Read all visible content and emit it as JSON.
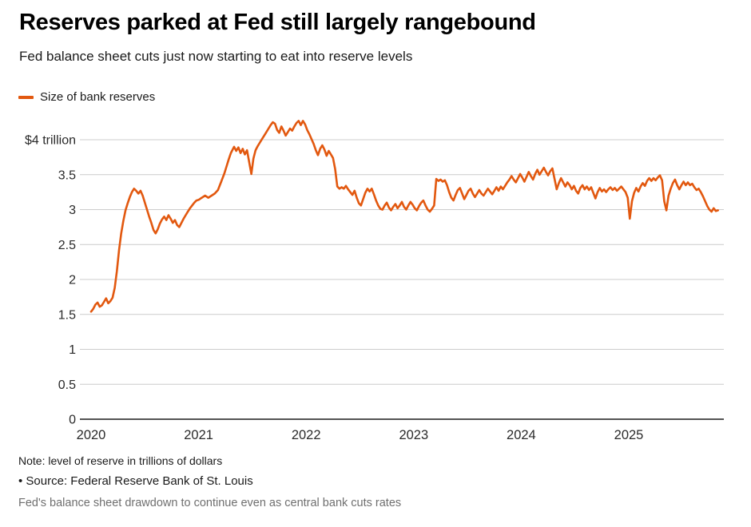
{
  "header": {
    "title": "Reserves parked at Fed still largely rangebound",
    "subtitle": "Fed balance sheet cuts just now starting to eat into reserve levels"
  },
  "legend": {
    "series_label": "Size of bank reserves"
  },
  "footer": {
    "note": "Note: level of reserve in trillions of dollars",
    "source": "• Source: Federal Reserve Bank of St. Louis",
    "caption": "Fed's balance sheet drawdown to continue even as central bank cuts rates"
  },
  "colors": {
    "line": "#E2580F",
    "grid": "#cccccc",
    "axis": "#1a1a1a",
    "tick_text": "#2a2a2a"
  },
  "chart_data": {
    "type": "line",
    "title": "Reserves parked at Fed still largely rangebound",
    "subtitle": "Fed balance sheet cuts just now starting to eat into reserve levels",
    "unit": "trillions of dollars",
    "grid": "horizontal",
    "legend_position": "top-left",
    "xlim": [
      2020,
      2025.9
    ],
    "ylim": [
      0,
      4.4
    ],
    "x_ticks": [
      2020,
      2021,
      2022,
      2023,
      2024,
      2025
    ],
    "y_ticks": [
      {
        "value": 4,
        "label": "$4 trillion"
      },
      {
        "value": 3.5,
        "label": "3.5"
      },
      {
        "value": 3,
        "label": "3"
      },
      {
        "value": 2.5,
        "label": "2.5"
      },
      {
        "value": 2,
        "label": "2"
      },
      {
        "value": 1.5,
        "label": "1.5"
      },
      {
        "value": 1,
        "label": "1"
      },
      {
        "value": 0.5,
        "label": "0.5"
      },
      {
        "value": 0,
        "label": "0"
      }
    ],
    "series": [
      {
        "name": "Size of bank reserves",
        "points": [
          [
            2020.0,
            1.54
          ],
          [
            2020.02,
            1.58
          ],
          [
            2020.04,
            1.64
          ],
          [
            2020.06,
            1.67
          ],
          [
            2020.08,
            1.61
          ],
          [
            2020.1,
            1.63
          ],
          [
            2020.12,
            1.68
          ],
          [
            2020.14,
            1.73
          ],
          [
            2020.16,
            1.66
          ],
          [
            2020.18,
            1.69
          ],
          [
            2020.2,
            1.74
          ],
          [
            2020.22,
            1.88
          ],
          [
            2020.24,
            2.12
          ],
          [
            2020.26,
            2.42
          ],
          [
            2020.28,
            2.66
          ],
          [
            2020.3,
            2.84
          ],
          [
            2020.32,
            2.99
          ],
          [
            2020.34,
            3.09
          ],
          [
            2020.36,
            3.18
          ],
          [
            2020.38,
            3.25
          ],
          [
            2020.4,
            3.3
          ],
          [
            2020.42,
            3.27
          ],
          [
            2020.44,
            3.23
          ],
          [
            2020.46,
            3.27
          ],
          [
            2020.48,
            3.2
          ],
          [
            2020.5,
            3.1
          ],
          [
            2020.52,
            3.0
          ],
          [
            2020.54,
            2.9
          ],
          [
            2020.56,
            2.81
          ],
          [
            2020.58,
            2.71
          ],
          [
            2020.6,
            2.66
          ],
          [
            2020.62,
            2.72
          ],
          [
            2020.64,
            2.8
          ],
          [
            2020.66,
            2.86
          ],
          [
            2020.68,
            2.9
          ],
          [
            2020.7,
            2.85
          ],
          [
            2020.72,
            2.92
          ],
          [
            2020.74,
            2.87
          ],
          [
            2020.76,
            2.81
          ],
          [
            2020.78,
            2.85
          ],
          [
            2020.8,
            2.78
          ],
          [
            2020.82,
            2.75
          ],
          [
            2020.84,
            2.81
          ],
          [
            2020.86,
            2.87
          ],
          [
            2020.88,
            2.92
          ],
          [
            2020.9,
            2.97
          ],
          [
            2020.92,
            3.02
          ],
          [
            2020.94,
            3.06
          ],
          [
            2020.96,
            3.1
          ],
          [
            2020.98,
            3.13
          ],
          [
            2021.0,
            3.14
          ],
          [
            2021.03,
            3.17
          ],
          [
            2021.06,
            3.2
          ],
          [
            2021.09,
            3.17
          ],
          [
            2021.12,
            3.2
          ],
          [
            2021.15,
            3.23
          ],
          [
            2021.18,
            3.28
          ],
          [
            2021.21,
            3.4
          ],
          [
            2021.24,
            3.52
          ],
          [
            2021.26,
            3.62
          ],
          [
            2021.28,
            3.72
          ],
          [
            2021.3,
            3.81
          ],
          [
            2021.33,
            3.9
          ],
          [
            2021.35,
            3.84
          ],
          [
            2021.37,
            3.89
          ],
          [
            2021.39,
            3.81
          ],
          [
            2021.41,
            3.87
          ],
          [
            2021.43,
            3.79
          ],
          [
            2021.45,
            3.85
          ],
          [
            2021.47,
            3.68
          ],
          [
            2021.49,
            3.51
          ],
          [
            2021.51,
            3.73
          ],
          [
            2021.53,
            3.85
          ],
          [
            2021.55,
            3.91
          ],
          [
            2021.57,
            3.96
          ],
          [
            2021.59,
            4.01
          ],
          [
            2021.61,
            4.06
          ],
          [
            2021.63,
            4.11
          ],
          [
            2021.65,
            4.16
          ],
          [
            2021.67,
            4.21
          ],
          [
            2021.69,
            4.25
          ],
          [
            2021.71,
            4.23
          ],
          [
            2021.73,
            4.14
          ],
          [
            2021.75,
            4.1
          ],
          [
            2021.77,
            4.19
          ],
          [
            2021.79,
            4.13
          ],
          [
            2021.81,
            4.06
          ],
          [
            2021.83,
            4.11
          ],
          [
            2021.85,
            4.16
          ],
          [
            2021.87,
            4.13
          ],
          [
            2021.89,
            4.19
          ],
          [
            2021.91,
            4.24
          ],
          [
            2021.93,
            4.27
          ],
          [
            2021.95,
            4.21
          ],
          [
            2021.97,
            4.27
          ],
          [
            2021.99,
            4.22
          ],
          [
            2022.01,
            4.14
          ],
          [
            2022.03,
            4.08
          ],
          [
            2022.05,
            4.01
          ],
          [
            2022.07,
            3.94
          ],
          [
            2022.09,
            3.85
          ],
          [
            2022.11,
            3.78
          ],
          [
            2022.13,
            3.87
          ],
          [
            2022.15,
            3.92
          ],
          [
            2022.17,
            3.86
          ],
          [
            2022.19,
            3.77
          ],
          [
            2022.21,
            3.84
          ],
          [
            2022.23,
            3.79
          ],
          [
            2022.25,
            3.74
          ],
          [
            2022.27,
            3.58
          ],
          [
            2022.29,
            3.33
          ],
          [
            2022.31,
            3.3
          ],
          [
            2022.33,
            3.32
          ],
          [
            2022.35,
            3.3
          ],
          [
            2022.37,
            3.34
          ],
          [
            2022.39,
            3.29
          ],
          [
            2022.41,
            3.25
          ],
          [
            2022.43,
            3.21
          ],
          [
            2022.45,
            3.27
          ],
          [
            2022.47,
            3.17
          ],
          [
            2022.49,
            3.09
          ],
          [
            2022.51,
            3.06
          ],
          [
            2022.53,
            3.15
          ],
          [
            2022.55,
            3.24
          ],
          [
            2022.57,
            3.3
          ],
          [
            2022.59,
            3.26
          ],
          [
            2022.61,
            3.3
          ],
          [
            2022.63,
            3.22
          ],
          [
            2022.65,
            3.13
          ],
          [
            2022.67,
            3.06
          ],
          [
            2022.69,
            3.01
          ],
          [
            2022.71,
            3.0
          ],
          [
            2022.73,
            3.06
          ],
          [
            2022.75,
            3.1
          ],
          [
            2022.77,
            3.03
          ],
          [
            2022.79,
            2.99
          ],
          [
            2022.81,
            3.04
          ],
          [
            2022.83,
            3.08
          ],
          [
            2022.85,
            3.02
          ],
          [
            2022.87,
            3.06
          ],
          [
            2022.89,
            3.11
          ],
          [
            2022.91,
            3.04
          ],
          [
            2022.93,
            3.0
          ],
          [
            2022.95,
            3.06
          ],
          [
            2022.97,
            3.11
          ],
          [
            2022.99,
            3.07
          ],
          [
            2023.01,
            3.02
          ],
          [
            2023.03,
            2.99
          ],
          [
            2023.05,
            3.05
          ],
          [
            2023.07,
            3.1
          ],
          [
            2023.09,
            3.13
          ],
          [
            2023.11,
            3.06
          ],
          [
            2023.13,
            3.0
          ],
          [
            2023.15,
            2.97
          ],
          [
            2023.17,
            3.01
          ],
          [
            2023.19,
            3.06
          ],
          [
            2023.21,
            3.44
          ],
          [
            2023.23,
            3.41
          ],
          [
            2023.25,
            3.43
          ],
          [
            2023.27,
            3.4
          ],
          [
            2023.29,
            3.42
          ],
          [
            2023.31,
            3.35
          ],
          [
            2023.33,
            3.25
          ],
          [
            2023.35,
            3.17
          ],
          [
            2023.37,
            3.13
          ],
          [
            2023.39,
            3.21
          ],
          [
            2023.41,
            3.28
          ],
          [
            2023.43,
            3.31
          ],
          [
            2023.45,
            3.23
          ],
          [
            2023.47,
            3.15
          ],
          [
            2023.49,
            3.21
          ],
          [
            2023.51,
            3.27
          ],
          [
            2023.53,
            3.3
          ],
          [
            2023.55,
            3.23
          ],
          [
            2023.57,
            3.18
          ],
          [
            2023.59,
            3.23
          ],
          [
            2023.61,
            3.28
          ],
          [
            2023.63,
            3.23
          ],
          [
            2023.65,
            3.2
          ],
          [
            2023.67,
            3.25
          ],
          [
            2023.69,
            3.3
          ],
          [
            2023.71,
            3.26
          ],
          [
            2023.73,
            3.22
          ],
          [
            2023.75,
            3.27
          ],
          [
            2023.77,
            3.32
          ],
          [
            2023.79,
            3.27
          ],
          [
            2023.81,
            3.33
          ],
          [
            2023.83,
            3.29
          ],
          [
            2023.85,
            3.34
          ],
          [
            2023.87,
            3.39
          ],
          [
            2023.89,
            3.43
          ],
          [
            2023.91,
            3.48
          ],
          [
            2023.93,
            3.43
          ],
          [
            2023.95,
            3.39
          ],
          [
            2023.97,
            3.45
          ],
          [
            2023.99,
            3.51
          ],
          [
            2024.01,
            3.46
          ],
          [
            2024.03,
            3.4
          ],
          [
            2024.05,
            3.47
          ],
          [
            2024.07,
            3.54
          ],
          [
            2024.09,
            3.48
          ],
          [
            2024.11,
            3.43
          ],
          [
            2024.13,
            3.51
          ],
          [
            2024.15,
            3.57
          ],
          [
            2024.17,
            3.5
          ],
          [
            2024.19,
            3.55
          ],
          [
            2024.21,
            3.6
          ],
          [
            2024.23,
            3.54
          ],
          [
            2024.25,
            3.49
          ],
          [
            2024.27,
            3.55
          ],
          [
            2024.29,
            3.59
          ],
          [
            2024.31,
            3.44
          ],
          [
            2024.33,
            3.29
          ],
          [
            2024.35,
            3.38
          ],
          [
            2024.37,
            3.45
          ],
          [
            2024.39,
            3.39
          ],
          [
            2024.41,
            3.33
          ],
          [
            2024.43,
            3.39
          ],
          [
            2024.45,
            3.35
          ],
          [
            2024.47,
            3.29
          ],
          [
            2024.49,
            3.34
          ],
          [
            2024.51,
            3.27
          ],
          [
            2024.53,
            3.23
          ],
          [
            2024.55,
            3.31
          ],
          [
            2024.57,
            3.35
          ],
          [
            2024.59,
            3.29
          ],
          [
            2024.61,
            3.33
          ],
          [
            2024.63,
            3.28
          ],
          [
            2024.65,
            3.32
          ],
          [
            2024.67,
            3.24
          ],
          [
            2024.69,
            3.16
          ],
          [
            2024.71,
            3.25
          ],
          [
            2024.73,
            3.31
          ],
          [
            2024.75,
            3.26
          ],
          [
            2024.77,
            3.29
          ],
          [
            2024.79,
            3.25
          ],
          [
            2024.81,
            3.29
          ],
          [
            2024.83,
            3.32
          ],
          [
            2024.85,
            3.28
          ],
          [
            2024.87,
            3.31
          ],
          [
            2024.89,
            3.27
          ],
          [
            2024.91,
            3.3
          ],
          [
            2024.93,
            3.33
          ],
          [
            2024.95,
            3.29
          ],
          [
            2024.97,
            3.25
          ],
          [
            2024.99,
            3.17
          ],
          [
            2025.01,
            2.87
          ],
          [
            2025.03,
            3.12
          ],
          [
            2025.05,
            3.24
          ],
          [
            2025.07,
            3.31
          ],
          [
            2025.09,
            3.26
          ],
          [
            2025.11,
            3.33
          ],
          [
            2025.13,
            3.38
          ],
          [
            2025.15,
            3.34
          ],
          [
            2025.17,
            3.41
          ],
          [
            2025.19,
            3.45
          ],
          [
            2025.21,
            3.41
          ],
          [
            2025.23,
            3.45
          ],
          [
            2025.25,
            3.42
          ],
          [
            2025.27,
            3.46
          ],
          [
            2025.29,
            3.49
          ],
          [
            2025.31,
            3.42
          ],
          [
            2025.33,
            3.12
          ],
          [
            2025.35,
            2.99
          ],
          [
            2025.37,
            3.2
          ],
          [
            2025.39,
            3.3
          ],
          [
            2025.41,
            3.38
          ],
          [
            2025.43,
            3.43
          ],
          [
            2025.45,
            3.35
          ],
          [
            2025.47,
            3.29
          ],
          [
            2025.49,
            3.35
          ],
          [
            2025.51,
            3.4
          ],
          [
            2025.53,
            3.35
          ],
          [
            2025.55,
            3.39
          ],
          [
            2025.57,
            3.35
          ],
          [
            2025.59,
            3.37
          ],
          [
            2025.61,
            3.32
          ],
          [
            2025.63,
            3.28
          ],
          [
            2025.65,
            3.3
          ],
          [
            2025.67,
            3.25
          ],
          [
            2025.69,
            3.19
          ],
          [
            2025.71,
            3.12
          ],
          [
            2025.73,
            3.05
          ],
          [
            2025.75,
            3.0
          ],
          [
            2025.77,
            2.97
          ],
          [
            2025.79,
            3.02
          ],
          [
            2025.81,
            2.98
          ],
          [
            2025.83,
            2.99
          ]
        ]
      }
    ]
  }
}
